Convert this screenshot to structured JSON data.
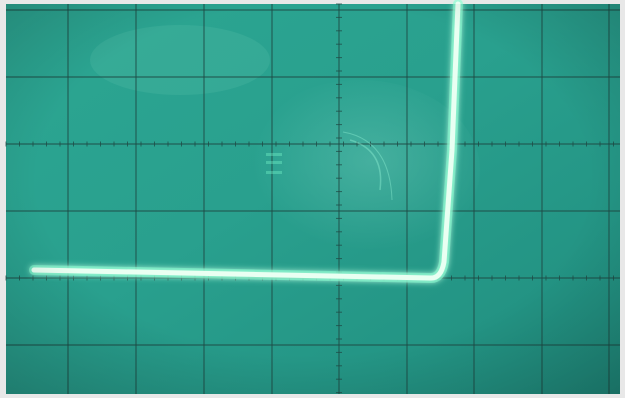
{
  "screen": {
    "phosphor_color": "#e9fff2",
    "trace_glow_color": "#7dffd0",
    "grid_color": "#1f4a44",
    "background_color": "#2aa08f"
  },
  "grid": {
    "major_divisions_x": 9,
    "major_divisions_y": 6
  }
}
